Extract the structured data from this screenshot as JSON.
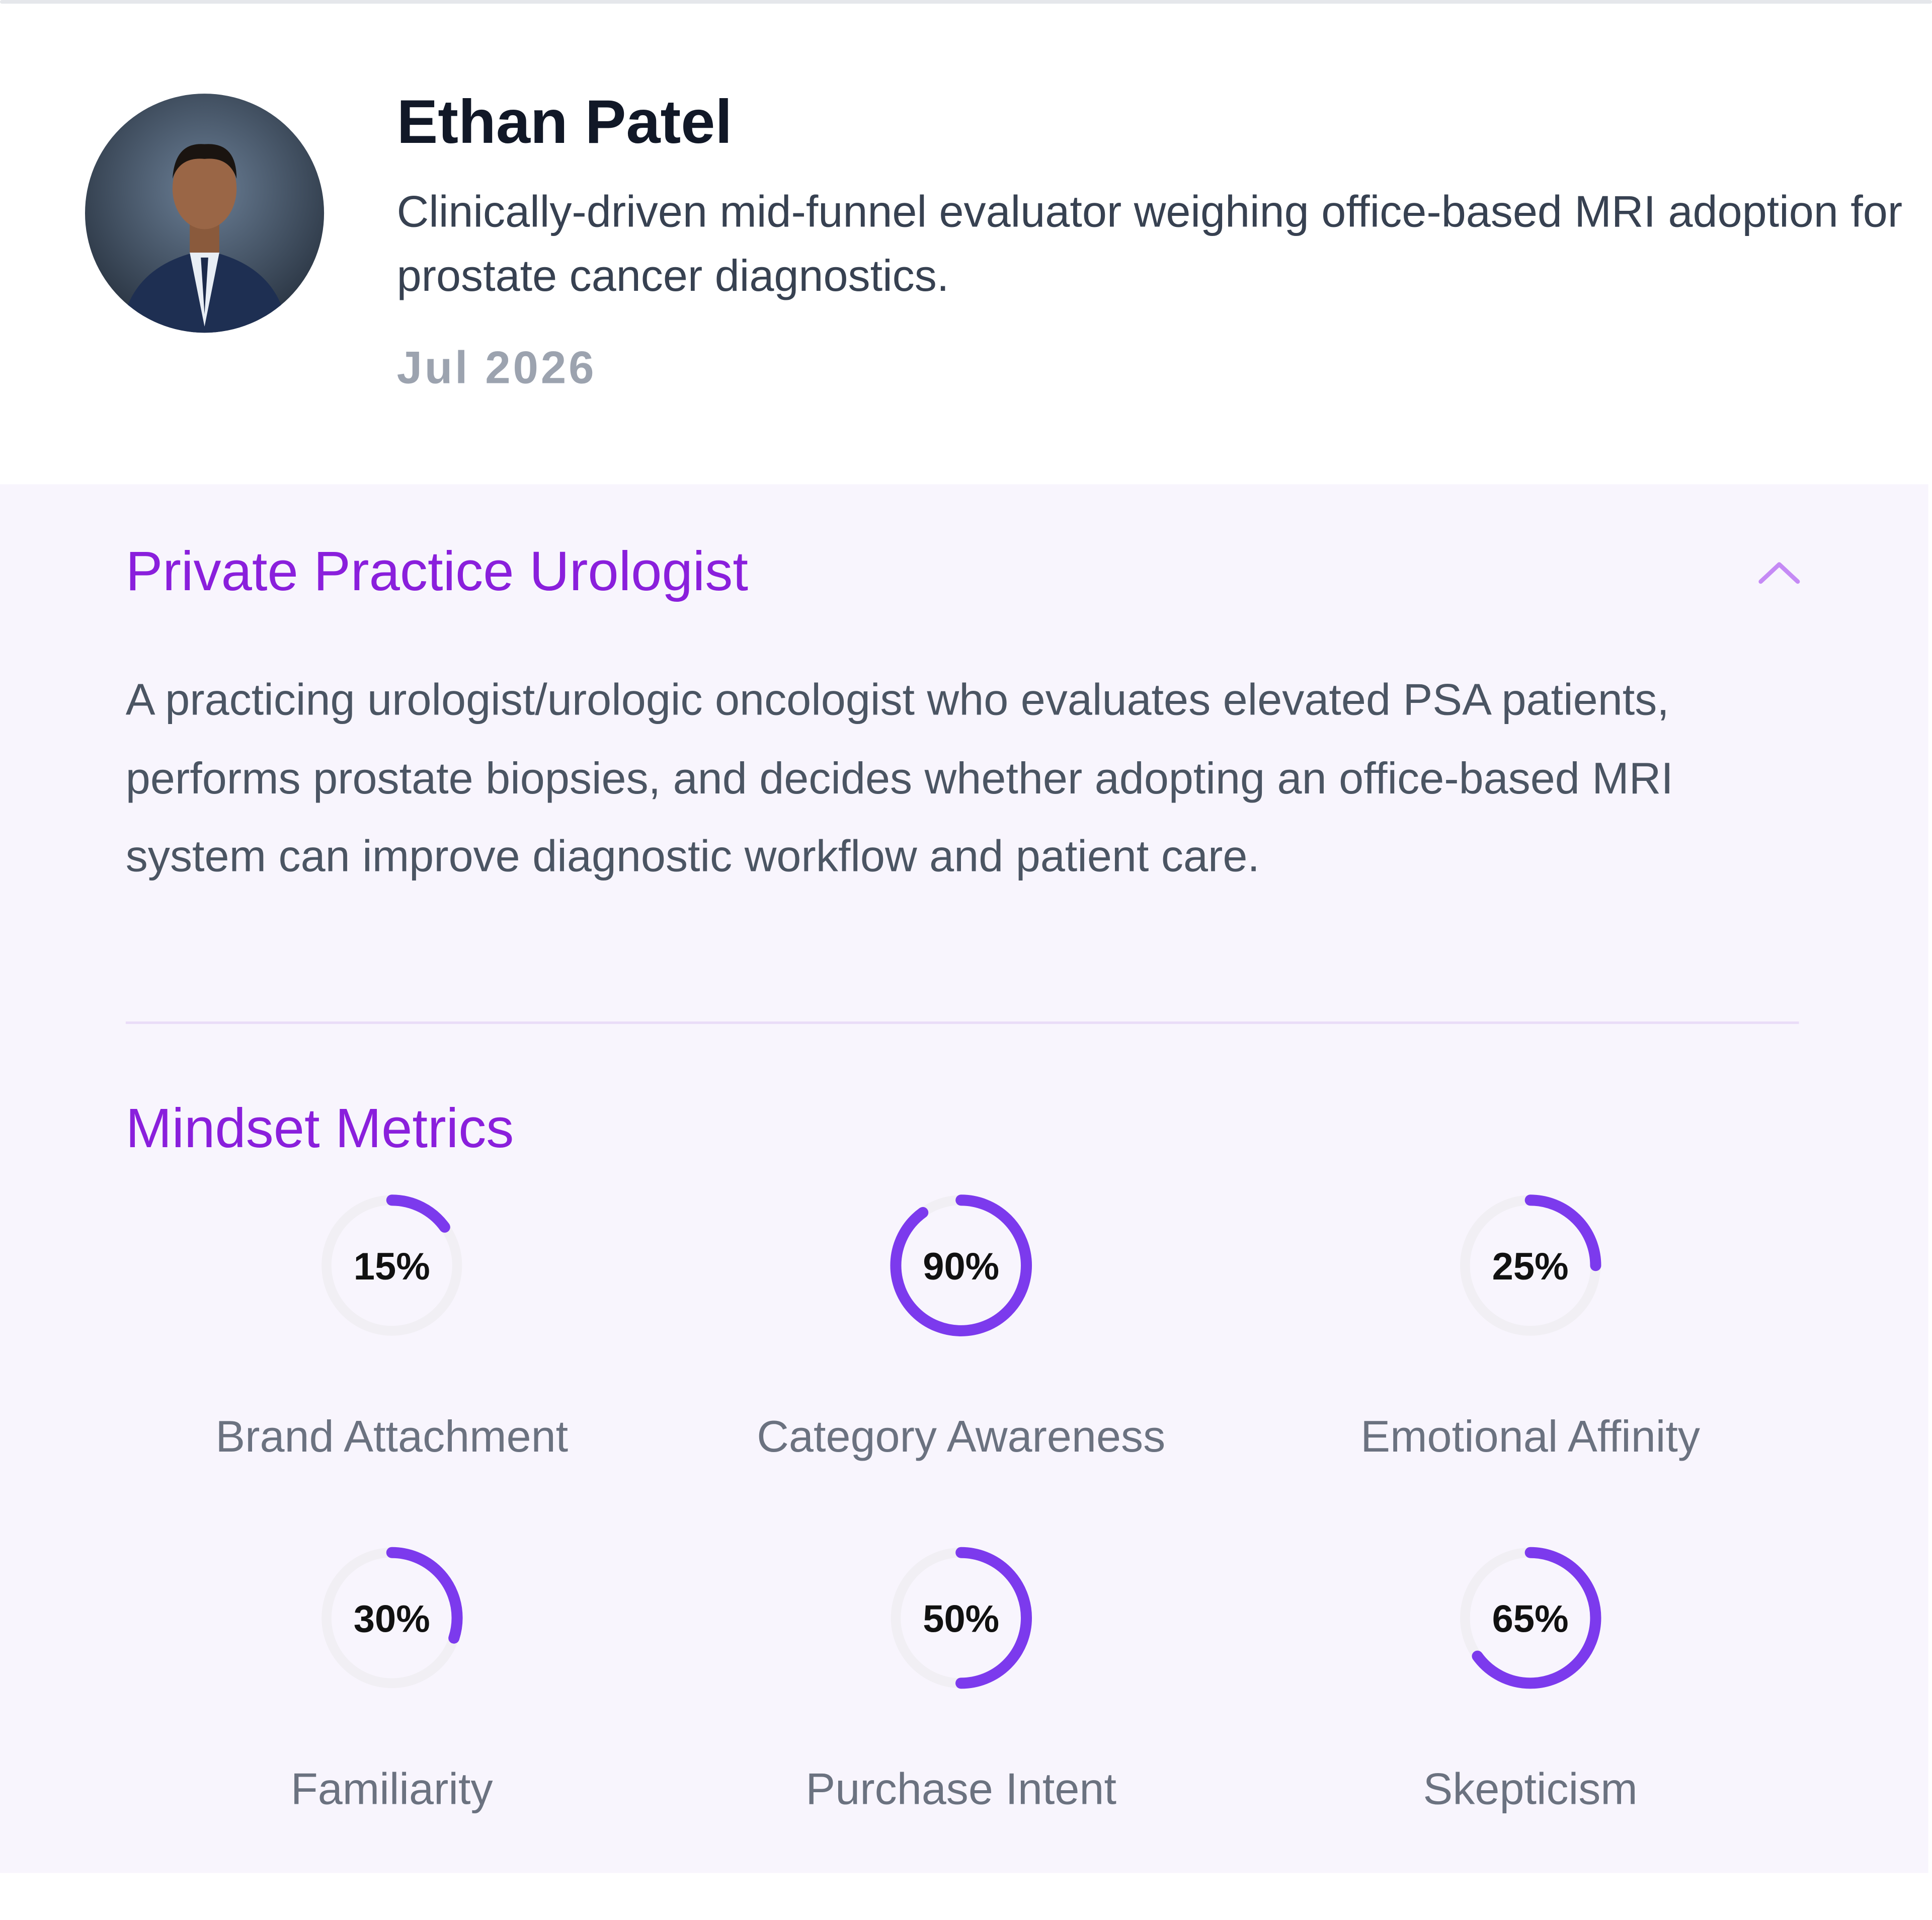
{
  "profile": {
    "name": "Ethan Patel",
    "description": "Clinically-driven mid-funnel evaluator weighing office-based MRI adoption for prostate cancer diagnostics.",
    "date": "Jul 2026"
  },
  "section": {
    "title": "Private Practice Urologist",
    "description": "A practicing urologist/urologic oncologist who evaluates elevated PSA patients, performs prostate biopsies, and decides whether adopting an office-based MRI system can improve diagnostic workflow and patient care."
  },
  "metrics": {
    "title": "Mindset Metrics",
    "labels": [
      "Brand Attachment",
      "Category Awareness",
      "Emotional Affinity",
      "Familiarity",
      "Purchase Intent",
      "Skepticism"
    ],
    "values": [
      15,
      90,
      25,
      30,
      50,
      65
    ],
    "value_labels": [
      "15%",
      "90%",
      "25%",
      "30%",
      "50%",
      "65%"
    ],
    "color": "#7c3aed"
  }
}
